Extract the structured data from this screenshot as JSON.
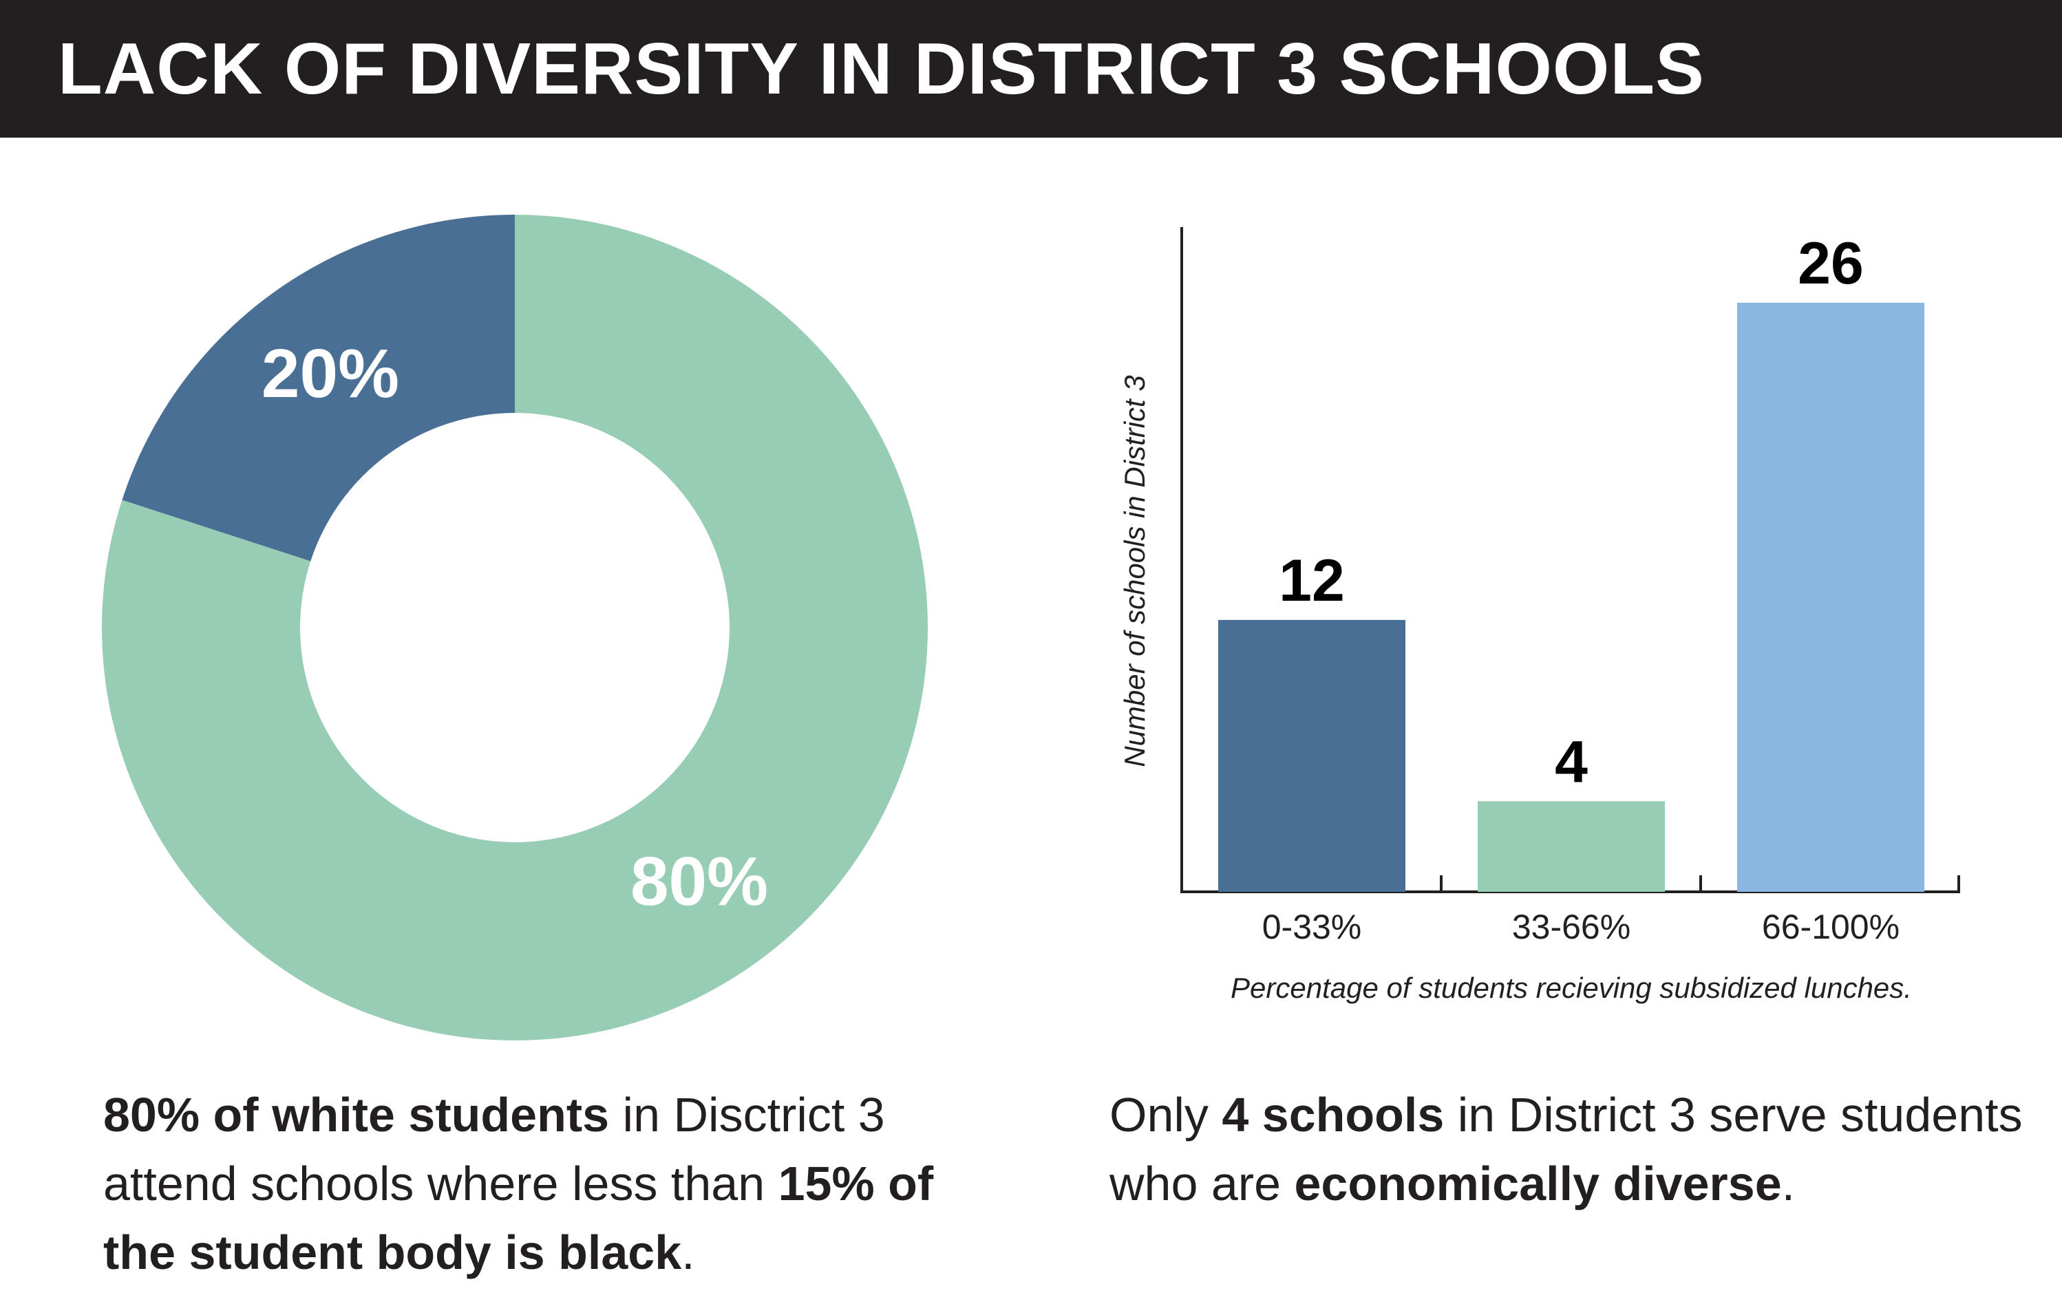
{
  "header": {
    "title": "LACK OF DIVERSITY IN DISTRICT 3 SCHOOLS"
  },
  "colors": {
    "header_bg": "#231f20",
    "dark_blue": "#4a6f94",
    "mint": "#98cdb5",
    "light_blue": "#8ab6e2",
    "text": "#231f20"
  },
  "chart_data": [
    {
      "type": "pie",
      "style": "donut",
      "slices": [
        {
          "label": "20%",
          "value": 20,
          "color": "#4a6f94"
        },
        {
          "label": "80%",
          "value": 80,
          "color": "#98cdb5"
        }
      ]
    },
    {
      "type": "bar",
      "categories": [
        "0-33%",
        "33-66%",
        "66-100%"
      ],
      "values": [
        12,
        4,
        26
      ],
      "data_labels": [
        "12",
        "4",
        "26"
      ],
      "colors": [
        "#4a6f94",
        "#98cdb5",
        "#8ab6e2"
      ],
      "xlabel": "Percentage of students recieving subsidized lunches.",
      "ylabel": "Number of  schools in District 3",
      "ylim": [
        0,
        29.4
      ],
      "grid": false
    }
  ],
  "captions": {
    "left": {
      "p1_bold": "80% of white students",
      "p2": " in Disctrict 3 attend schools where less than ",
      "p3_bold": "15% of the student body is black",
      "p4": "."
    },
    "right": {
      "p1": "Only ",
      "p2_bold": "4 schools",
      "p3": " in District 3 serve students who are ",
      "p4_bold": "economically diverse",
      "p5": "."
    }
  }
}
